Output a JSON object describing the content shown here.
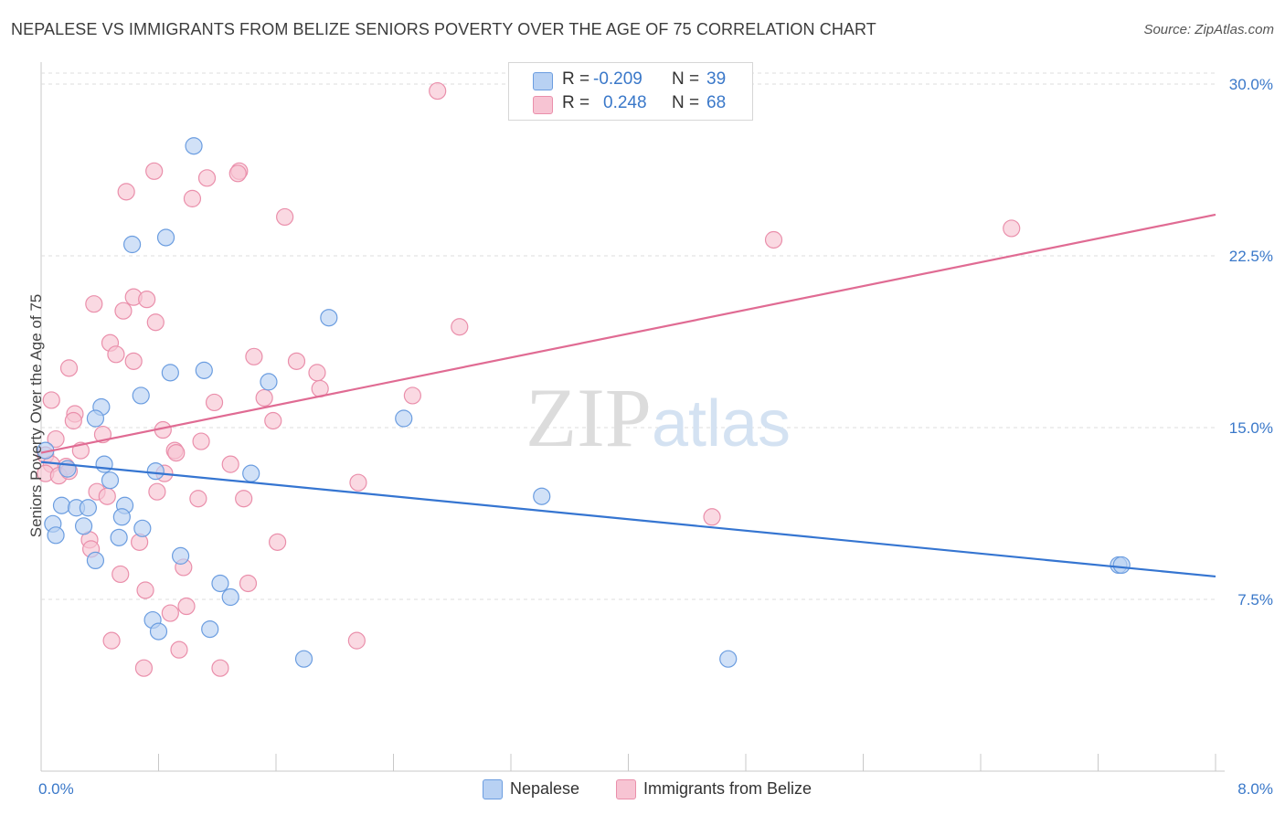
{
  "title": "NEPALESE VS IMMIGRANTS FROM BELIZE SENIORS POVERTY OVER THE AGE OF 75 CORRELATION CHART",
  "source": "Source: ZipAtlas.com",
  "watermark": "ZIPatlas",
  "legend": {
    "row1": {
      "r_label": "R =",
      "r_value": "-0.209",
      "n_label": "N =",
      "n_value": "39"
    },
    "row2": {
      "r_label": "R =",
      "r_value": "0.248",
      "n_label": "N =",
      "n_value": "68"
    }
  },
  "bottom_legend": {
    "series1": "Nepalese",
    "series2": "Immigrants from Belize"
  },
  "colors": {
    "blue_fill": "#b8d1f3",
    "blue_stroke": "#6b9de0",
    "blue_line": "#3575d1",
    "pink_fill": "#f7c4d3",
    "pink_stroke": "#ea8fab",
    "pink_line": "#e06b93",
    "tick_label": "#3a78c9",
    "grid": "#dddddd"
  },
  "chart_data": {
    "type": "scatter",
    "title": "NEPALESE VS IMMIGRANTS FROM BELIZE SENIORS POVERTY OVER THE AGE OF 75 CORRELATION CHART",
    "xlabel": "",
    "ylabel": "Seniors Poverty Over the Age of 75",
    "xlim": [
      0,
      8
    ],
    "ylim": [
      0,
      30.8
    ],
    "x_tick_labels": [
      "0.0%",
      "8.0%"
    ],
    "y_ticks": [
      7.5,
      15.0,
      22.5,
      30.0
    ],
    "y_tick_labels": [
      "7.5%",
      "15.0%",
      "22.5%",
      "30.0%"
    ],
    "grid": "horizontal dashed",
    "legend_position": "top-center",
    "series": [
      {
        "name": "Nepalese",
        "R": -0.209,
        "N": 39,
        "trend": {
          "x": [
            0,
            8
          ],
          "y": [
            13.5,
            8.5
          ]
        },
        "points": [
          {
            "x": 1.04,
            "y": 27.3
          },
          {
            "x": 0.62,
            "y": 23.0
          },
          {
            "x": 0.85,
            "y": 23.3
          },
          {
            "x": 1.96,
            "y": 19.8
          },
          {
            "x": 1.11,
            "y": 17.5
          },
          {
            "x": 0.88,
            "y": 17.4
          },
          {
            "x": 1.55,
            "y": 17.0
          },
          {
            "x": 0.68,
            "y": 16.4
          },
          {
            "x": 0.41,
            "y": 15.9
          },
          {
            "x": 0.37,
            "y": 15.4
          },
          {
            "x": 2.47,
            "y": 15.4
          },
          {
            "x": 0.03,
            "y": 14.0
          },
          {
            "x": 0.43,
            "y": 13.4
          },
          {
            "x": 0.78,
            "y": 13.1
          },
          {
            "x": 0.18,
            "y": 13.2
          },
          {
            "x": 1.43,
            "y": 13.0
          },
          {
            "x": 0.47,
            "y": 12.7
          },
          {
            "x": 3.41,
            "y": 12.0
          },
          {
            "x": 0.14,
            "y": 11.6
          },
          {
            "x": 0.57,
            "y": 11.6
          },
          {
            "x": 0.24,
            "y": 11.5
          },
          {
            "x": 0.32,
            "y": 11.5
          },
          {
            "x": 0.55,
            "y": 11.1
          },
          {
            "x": 0.08,
            "y": 10.8
          },
          {
            "x": 0.29,
            "y": 10.7
          },
          {
            "x": 0.69,
            "y": 10.6
          },
          {
            "x": 0.1,
            "y": 10.3
          },
          {
            "x": 0.53,
            "y": 10.2
          },
          {
            "x": 0.37,
            "y": 9.2
          },
          {
            "x": 0.95,
            "y": 9.4
          },
          {
            "x": 7.34,
            "y": 9.0
          },
          {
            "x": 7.36,
            "y": 9.0
          },
          {
            "x": 1.22,
            "y": 8.2
          },
          {
            "x": 1.29,
            "y": 7.6
          },
          {
            "x": 0.76,
            "y": 6.6
          },
          {
            "x": 0.8,
            "y": 6.1
          },
          {
            "x": 1.15,
            "y": 6.2
          },
          {
            "x": 1.79,
            "y": 4.9
          },
          {
            "x": 4.68,
            "y": 4.9
          }
        ]
      },
      {
        "name": "Immigrants from Belize",
        "R": 0.248,
        "N": 68,
        "trend": {
          "x": [
            0,
            8
          ],
          "y": [
            13.9,
            24.3
          ]
        },
        "points": [
          {
            "x": 2.7,
            "y": 29.7
          },
          {
            "x": 0.77,
            "y": 26.2
          },
          {
            "x": 1.35,
            "y": 26.2
          },
          {
            "x": 1.34,
            "y": 26.1
          },
          {
            "x": 1.13,
            "y": 25.9
          },
          {
            "x": 0.58,
            "y": 25.3
          },
          {
            "x": 1.03,
            "y": 25.0
          },
          {
            "x": 1.66,
            "y": 24.2
          },
          {
            "x": 6.61,
            "y": 23.7
          },
          {
            "x": 4.99,
            "y": 23.2
          },
          {
            "x": 0.63,
            "y": 20.7
          },
          {
            "x": 0.72,
            "y": 20.6
          },
          {
            "x": 0.36,
            "y": 20.4
          },
          {
            "x": 0.56,
            "y": 20.1
          },
          {
            "x": 0.78,
            "y": 19.6
          },
          {
            "x": 2.85,
            "y": 19.4
          },
          {
            "x": 0.47,
            "y": 18.7
          },
          {
            "x": 0.51,
            "y": 18.2
          },
          {
            "x": 1.45,
            "y": 18.1
          },
          {
            "x": 0.63,
            "y": 17.9
          },
          {
            "x": 1.74,
            "y": 17.9
          },
          {
            "x": 0.19,
            "y": 17.6
          },
          {
            "x": 1.88,
            "y": 17.4
          },
          {
            "x": 1.9,
            "y": 16.7
          },
          {
            "x": 2.53,
            "y": 16.4
          },
          {
            "x": 1.52,
            "y": 16.3
          },
          {
            "x": 1.18,
            "y": 16.1
          },
          {
            "x": 0.07,
            "y": 16.2
          },
          {
            "x": 0.23,
            "y": 15.6
          },
          {
            "x": 0.22,
            "y": 15.3
          },
          {
            "x": 1.58,
            "y": 15.3
          },
          {
            "x": 0.83,
            "y": 14.9
          },
          {
            "x": 0.42,
            "y": 14.7
          },
          {
            "x": 0.1,
            "y": 14.5
          },
          {
            "x": 1.09,
            "y": 14.4
          },
          {
            "x": 0.27,
            "y": 14.0
          },
          {
            "x": 0.91,
            "y": 14.0
          },
          {
            "x": 0.03,
            "y": 13.8
          },
          {
            "x": 0.92,
            "y": 13.9
          },
          {
            "x": 0.07,
            "y": 13.4
          },
          {
            "x": 0.17,
            "y": 13.3
          },
          {
            "x": 1.29,
            "y": 13.4
          },
          {
            "x": 0.03,
            "y": 13.0
          },
          {
            "x": 0.12,
            "y": 12.9
          },
          {
            "x": 0.84,
            "y": 13.0
          },
          {
            "x": 2.16,
            "y": 12.6
          },
          {
            "x": 0.38,
            "y": 12.2
          },
          {
            "x": 0.79,
            "y": 12.2
          },
          {
            "x": 0.45,
            "y": 12.0
          },
          {
            "x": 1.07,
            "y": 11.9
          },
          {
            "x": 1.38,
            "y": 11.9
          },
          {
            "x": 4.57,
            "y": 11.1
          },
          {
            "x": 0.33,
            "y": 10.1
          },
          {
            "x": 0.67,
            "y": 10.0
          },
          {
            "x": 1.61,
            "y": 10.0
          },
          {
            "x": 0.34,
            "y": 9.7
          },
          {
            "x": 0.97,
            "y": 8.9
          },
          {
            "x": 0.54,
            "y": 8.6
          },
          {
            "x": 1.41,
            "y": 8.2
          },
          {
            "x": 0.71,
            "y": 7.9
          },
          {
            "x": 0.99,
            "y": 7.2
          },
          {
            "x": 0.88,
            "y": 6.9
          },
          {
            "x": 0.48,
            "y": 5.7
          },
          {
            "x": 2.15,
            "y": 5.7
          },
          {
            "x": 0.94,
            "y": 5.3
          },
          {
            "x": 0.7,
            "y": 4.5
          },
          {
            "x": 1.22,
            "y": 4.5
          },
          {
            "x": 0.19,
            "y": 13.1
          }
        ]
      }
    ]
  }
}
